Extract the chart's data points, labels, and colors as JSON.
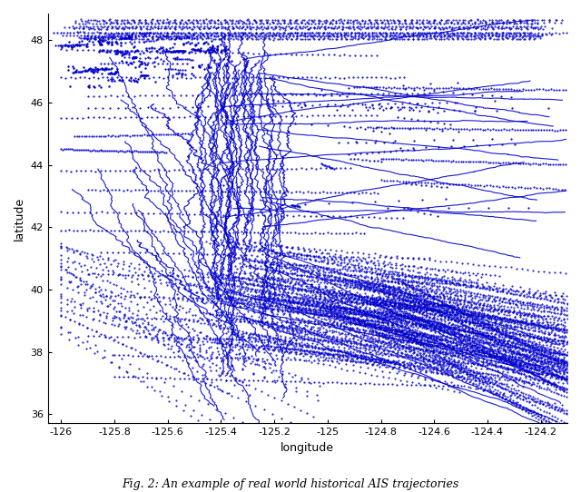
{
  "color": "#0000CC",
  "xlim": [
    -126.05,
    -124.1
  ],
  "ylim": [
    35.7,
    48.85
  ],
  "xticks": [
    -126,
    -125.8,
    -125.6,
    -125.4,
    -125.2,
    -125,
    -124.8,
    -124.6,
    -124.4,
    -124.2
  ],
  "yticks": [
    36,
    38,
    40,
    42,
    44,
    46,
    48
  ],
  "xlabel": "longitude",
  "ylabel": "latitude",
  "figsize": [
    6.4,
    5.42
  ],
  "dpi": 100,
  "seed": 7,
  "caption": "Fig. 2: An example of real world historical AIS trajectories"
}
